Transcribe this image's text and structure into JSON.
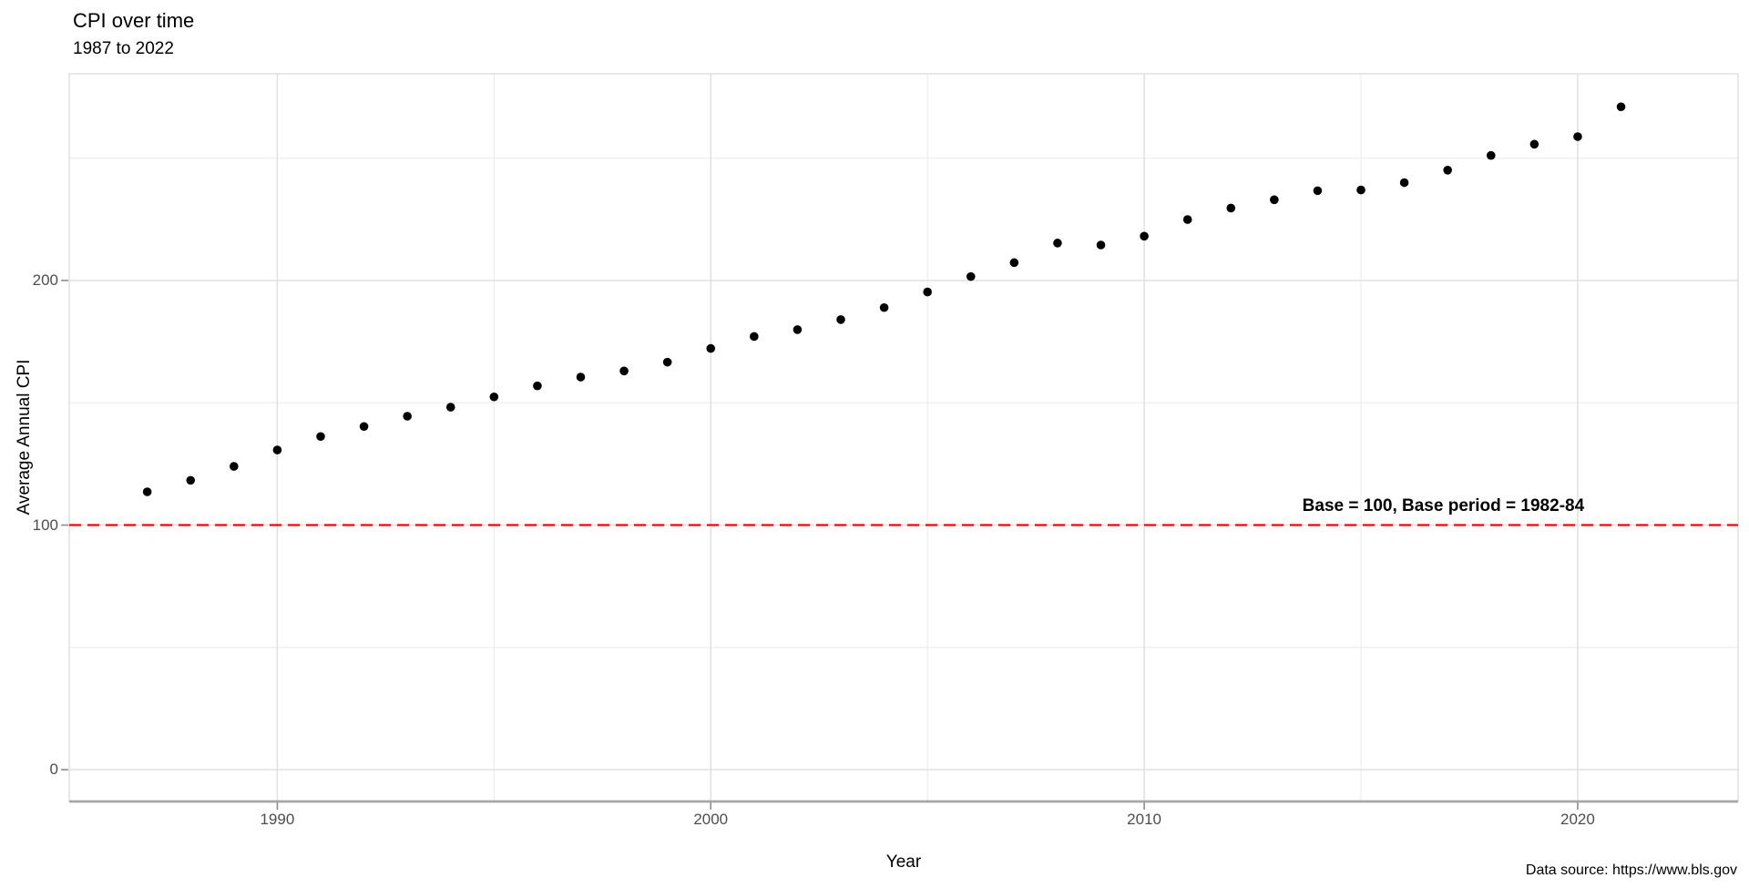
{
  "header": {
    "title": "CPI over time",
    "subtitle": "1987 to 2022"
  },
  "caption": "Data source: https://www.bls.gov",
  "chart_data": {
    "type": "scatter",
    "title": "CPI over time",
    "subtitle": "1987 to 2022",
    "xlabel": "Year",
    "ylabel": "Average Annual CPI",
    "x": [
      1987,
      1988,
      1989,
      1990,
      1991,
      1992,
      1993,
      1994,
      1995,
      1996,
      1997,
      1998,
      1999,
      2000,
      2001,
      2002,
      2003,
      2004,
      2005,
      2006,
      2007,
      2008,
      2009,
      2010,
      2011,
      2012,
      2013,
      2014,
      2015,
      2016,
      2017,
      2018,
      2019,
      2020,
      2021
    ],
    "y": [
      113.6,
      118.3,
      124.0,
      130.7,
      136.2,
      140.3,
      144.5,
      148.2,
      152.4,
      156.9,
      160.5,
      163.0,
      166.6,
      172.2,
      177.1,
      179.9,
      184.0,
      188.9,
      195.3,
      201.6,
      207.3,
      215.3,
      214.5,
      218.1,
      224.9,
      229.6,
      233.0,
      236.7,
      237.0,
      240.0,
      245.1,
      251.1,
      255.7,
      258.8,
      271.0
    ],
    "x_ticks": [
      1990,
      2000,
      2010,
      2020
    ],
    "y_ticks": [
      0,
      100,
      200
    ],
    "x_minor_gridlines": [
      1995,
      2005,
      2015
    ],
    "y_minor_gridlines": [
      50,
      150,
      250
    ],
    "xlim": [
      1985.2,
      2023.7
    ],
    "ylim": [
      -13,
      284.5
    ],
    "grid": true,
    "legend": "none",
    "point_color": "#000000",
    "reference_line": {
      "y": 100,
      "color": "#FF0000",
      "style": "dashed"
    },
    "annotation": {
      "text": "Base = 100, Base period = 1982-84",
      "x": 2016.9,
      "y": 103.5
    }
  },
  "style_colors": {
    "grid_major": "#DEDEDE",
    "grid_minor": "#ECECEC",
    "panel_border": "#D8D8D8",
    "axis_line": "#A6A6A6",
    "tick_mark": "#8C8C8C",
    "tick_label": "#4D4D4D"
  }
}
